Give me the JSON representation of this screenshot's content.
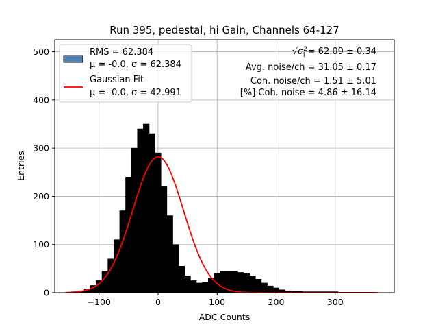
{
  "chart_data": {
    "type": "histogram",
    "title": "Run 395, pedestal, hi Gain, Channels 64-127",
    "xlabel": "ADC Counts",
    "ylabel": "Entries",
    "xlim": [
      -175,
      400
    ],
    "ylim": [
      0,
      525
    ],
    "xticks": [
      -100,
      0,
      100,
      200,
      300
    ],
    "yticks": [
      0,
      100,
      200,
      300,
      400,
      500
    ],
    "grid": true,
    "legend_position": "top-left",
    "series": [
      {
        "name": "RMS = 62.384",
        "name_line2": "μ = -0.0, σ = 62.384",
        "kind": "histogram",
        "bar_edge_color": "#000000",
        "legend_color": "#4f81b3",
        "bin_centers": [
          -150,
          -140,
          -130,
          -120,
          -110,
          -100,
          -90,
          -80,
          -70,
          -60,
          -50,
          -40,
          -30,
          -20,
          -10,
          0,
          10,
          20,
          30,
          40,
          50,
          60,
          70,
          80,
          90,
          100,
          110,
          120,
          130,
          140,
          150,
          160,
          170,
          180,
          190,
          200,
          210,
          220,
          230,
          240,
          250,
          260,
          270,
          280,
          290,
          300,
          310,
          320,
          330,
          340,
          350,
          360,
          370
        ],
        "values": [
          1,
          2,
          4,
          8,
          15,
          25,
          45,
          70,
          110,
          170,
          240,
          300,
          340,
          350,
          330,
          290,
          220,
          160,
          100,
          55,
          35,
          25,
          20,
          22,
          30,
          40,
          45,
          45,
          45,
          42,
          40,
          35,
          28,
          20,
          14,
          10,
          6,
          4,
          3,
          3,
          2,
          2,
          2,
          2,
          2,
          2,
          1,
          1,
          1,
          1,
          1,
          1,
          0
        ]
      },
      {
        "name": "Gaussian Fit",
        "name_line2": "μ = -0.0, σ = 42.991",
        "kind": "line",
        "color": "#ff0000",
        "mu": 0.0,
        "sigma": 42.991,
        "amplitude": 282,
        "x_range": [
          -157,
          372
        ]
      }
    ],
    "annotations": [
      {
        "sqrt_symbol": "√",
        "sigma": "σ",
        "sub": "i",
        "sup": "2",
        "value": " = 62.09 ± 0.34"
      },
      {
        "text": "Avg. noise/ch = 31.05 ± 0.17"
      },
      {
        "text": "Coh. noise/ch = 1.51 ± 5.01"
      },
      {
        "text": "[%] Coh. noise = 4.86 ± 16.14"
      }
    ]
  }
}
